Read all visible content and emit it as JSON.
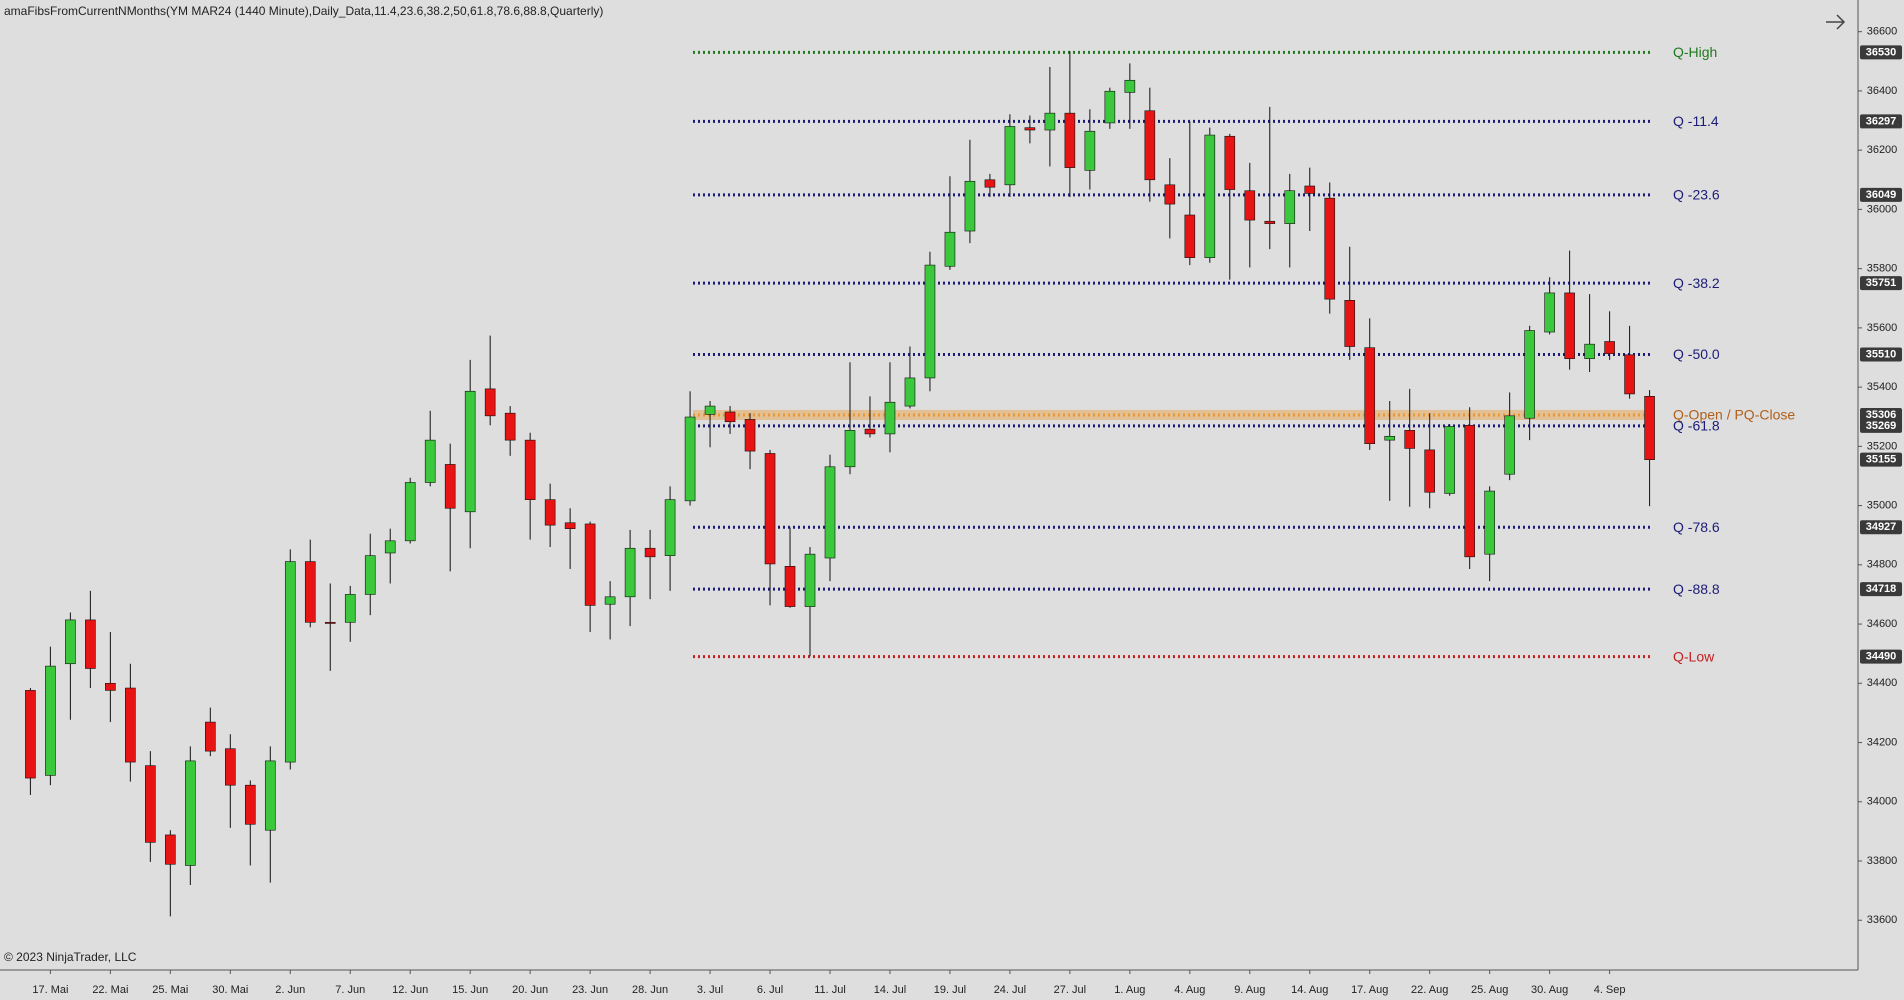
{
  "chart_data": {
    "type": "candlestick",
    "title": "amaFibsFromCurrentNMonths(YM MAR24 (1440 Minute),Daily_Data,11.4,23.6,38.2,50,61.8,78.6,88.8,Quarterly)",
    "footer": "© 2023 NinjaTrader, LLC",
    "categories": [
      null,
      "17. Mai",
      null,
      null,
      "22. Mai",
      null,
      null,
      "25. Mai",
      null,
      null,
      "30. Mai",
      null,
      null,
      "2. Jun",
      null,
      null,
      "7. Jun",
      null,
      null,
      "12. Jun",
      null,
      null,
      "15. Jun",
      null,
      null,
      "20. Jun",
      null,
      null,
      "23. Jun",
      null,
      null,
      "28. Jun",
      null,
      null,
      "3. Jul",
      null,
      null,
      "6. Jul",
      null,
      null,
      "11. Jul",
      null,
      null,
      "14. Jul",
      null,
      null,
      "19. Jul",
      null,
      null,
      "24. Jul",
      null,
      null,
      "27. Jul",
      null,
      null,
      "1. Aug",
      null,
      null,
      "4. Aug",
      null,
      null,
      "9. Aug",
      null,
      null,
      "14. Aug",
      null,
      null,
      "17. Aug",
      null,
      null,
      "22. Aug",
      null,
      null,
      "25. Aug",
      null,
      null,
      "30. Aug",
      null,
      null,
      "4. Sep",
      null,
      null
    ],
    "open": [
      34376,
      34089,
      34466,
      34614,
      34400,
      34384,
      34122,
      33888,
      33785,
      34269,
      34179,
      34056,
      33904,
      34134,
      34811,
      34606,
      34606,
      34700,
      34840,
      34881,
      35078,
      35139,
      34979,
      35394,
      35312,
      35221,
      35020,
      34942,
      34938,
      34667,
      34692,
      34856,
      34831,
      35016,
      35308,
      35316,
      35291,
      35176,
      34795,
      34659,
      34823,
      35131,
      35258,
      35242,
      35336,
      35431,
      35808,
      35927,
      36100,
      36083,
      36276,
      36268,
      36325,
      36132,
      36292,
      36395,
      36333,
      36083,
      35981,
      35837,
      36247,
      36063,
      35960,
      35952,
      36079,
      36038,
      35693,
      35533,
      35221,
      35254,
      35188,
      35041,
      35271,
      34836,
      35106,
      35295,
      35586,
      35718,
      35496,
      35554,
      35509,
      35369
    ],
    "high": [
      34384,
      34524,
      34639,
      34712,
      34573,
      34466,
      34171,
      33904,
      34187,
      34318,
      34228,
      34072,
      34187,
      34852,
      34885,
      34737,
      34729,
      34905,
      34922,
      35094,
      35320,
      35209,
      35492,
      35574,
      35336,
      35246,
      35074,
      34991,
      34946,
      34745,
      34918,
      34918,
      35065,
      35386,
      35353,
      35336,
      35312,
      35188,
      34926,
      34860,
      35172,
      35484,
      35369,
      35484,
      35537,
      35857,
      36112,
      36235,
      36120,
      36321,
      36317,
      36481,
      36534,
      36338,
      36411,
      36493,
      36411,
      36173,
      36297,
      36276,
      36255,
      36157,
      36346,
      36120,
      36141,
      36091,
      35874,
      35632,
      35353,
      35394,
      35312,
      35275,
      35332,
      35065,
      35382,
      35607,
      35771,
      35861,
      35714,
      35656,
      35607,
      35390
    ],
    "low": [
      34023,
      34056,
      34277,
      34384,
      34269,
      34068,
      33797,
      33613,
      33719,
      34154,
      33912,
      33785,
      33727,
      34109,
      34589,
      34442,
      34540,
      34630,
      34737,
      34872,
      35065,
      34778,
      34856,
      35271,
      35168,
      34885,
      34860,
      34786,
      34573,
      34548,
      34593,
      34684,
      34712,
      35000,
      35197,
      35242,
      35123,
      34663,
      34655,
      34491,
      34745,
      35106,
      35230,
      35180,
      35328,
      35386,
      35796,
      35886,
      36042,
      36042,
      36223,
      36145,
      36042,
      36067,
      36272,
      36272,
      36026,
      35902,
      35812,
      35820,
      35763,
      35804,
      35866,
      35804,
      35927,
      35648,
      35492,
      35188,
      35016,
      34996,
      34991,
      35033,
      34786,
      34745,
      35086,
      35221,
      35578,
      35459,
      35451,
      35492,
      35361,
      34998
    ],
    "close": [
      34080,
      34458,
      34614,
      34450,
      34376,
      34134,
      33863,
      33789,
      34138,
      34171,
      34056,
      33924,
      34138,
      34811,
      34606,
      34602,
      34700,
      34831,
      34881,
      35078,
      35221,
      34991,
      35386,
      35303,
      35221,
      35020,
      34934,
      34922,
      34663,
      34692,
      34856,
      34827,
      35020,
      35299,
      35336,
      35283,
      35184,
      34803,
      34659,
      34836,
      35131,
      35254,
      35242,
      35349,
      35431,
      35812,
      35923,
      36095,
      36075,
      36280,
      36268,
      36325,
      36141,
      36264,
      36399,
      36436,
      36100,
      36018,
      35837,
      36251,
      36067,
      35964,
      35952,
      36063,
      36054,
      35697,
      35537,
      35209,
      35234,
      35193,
      35045,
      35267,
      34827,
      35049,
      35303,
      35591,
      35718,
      35496,
      35545,
      35513,
      35377,
      35155
    ],
    "up_color": "#3cc83c",
    "down_color": "#e81414",
    "ylim": [
      33432,
      36707
    ],
    "yticks": [
      33600,
      33800,
      34000,
      34200,
      34400,
      34600,
      34800,
      35000,
      35200,
      35400,
      35600,
      35800,
      36000,
      36200,
      36400,
      36600
    ],
    "grid": false,
    "levels": [
      {
        "name": "Q-High",
        "value": 36530,
        "color": "#1f7a1f"
      },
      {
        "name": "Q -11.4",
        "value": 36297,
        "color": "#1c1c78"
      },
      {
        "name": "Q -23.6",
        "value": 36049,
        "color": "#1c1c78"
      },
      {
        "name": "Q -38.2",
        "value": 35751,
        "color": "#1c1c78"
      },
      {
        "name": "Q -50.0",
        "value": 35510,
        "color": "#1c1c78"
      },
      {
        "name": "Q-Open / PQ-Close",
        "value": 35306,
        "color": "#e89a3a"
      },
      {
        "name": "Q -61.8",
        "value": 35269,
        "color": "#1c1c78"
      },
      {
        "name": "Q -78.6",
        "value": 34927,
        "color": "#1c1c78"
      },
      {
        "name": "Q -88.8",
        "value": 34718,
        "color": "#1c1c78"
      },
      {
        "name": "Q-Low",
        "value": 34490,
        "color": "#c42020"
      }
    ]
  }
}
